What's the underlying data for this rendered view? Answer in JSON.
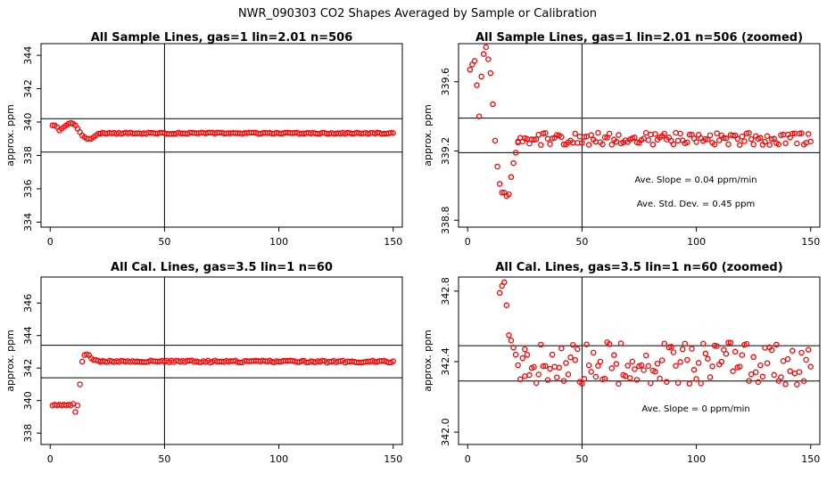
{
  "figure": {
    "title": "NWR_090303  CO2 Shapes Averaged by Sample or Calibration"
  },
  "chart_data": [
    {
      "type": "scatter",
      "title": "All Sample Lines, gas=1 lin=2.01 n=506",
      "xlabel": "",
      "ylabel": "approx. ppm",
      "xlim": [
        -4,
        154
      ],
      "ylim": [
        333.7,
        344.7
      ],
      "xticks": [
        "0",
        "50",
        "100",
        "150"
      ],
      "yticks": [
        "334",
        "336",
        "338",
        "340",
        "342",
        "344"
      ],
      "hlines": [
        340.2,
        338.2
      ],
      "vline": 50,
      "color": "#ff0000",
      "marker": "open-circle",
      "series": [
        {
          "segments": [
            {
              "x": [
                1,
                2,
                3,
                4,
                5,
                6,
                7,
                8,
                9,
                10,
                11,
                12,
                13,
                14,
                15,
                16,
                17,
                18,
                19,
                20,
                21,
                22
              ],
              "y": [
                339.8,
                339.8,
                339.7,
                339.5,
                339.6,
                339.7,
                339.8,
                339.9,
                339.95,
                339.9,
                339.8,
                339.6,
                339.4,
                339.2,
                339.1,
                339.0,
                339.0,
                339.0,
                339.1,
                339.2,
                339.3,
                339.3
              ]
            },
            {
              "from": 22,
              "to": 150,
              "base": 339.33,
              "amp": 0.04
            }
          ]
        }
      ]
    },
    {
      "type": "scatter",
      "title": "All Sample Lines, gas=1 lin=2.01 n=506 (zoomed)",
      "xlabel": "",
      "ylabel": "approx. ppm",
      "xlim": [
        -4,
        154
      ],
      "ylim": [
        338.76,
        339.82
      ],
      "xticks": [
        "0",
        "50",
        "100",
        "150"
      ],
      "yticks": [
        "338.8",
        "339.2",
        "339.6"
      ],
      "hlines": [
        339.39,
        339.19
      ],
      "vline": 50,
      "color": "#ff0000",
      "marker": "open-circle",
      "annotations": [
        "Ave. Slope =  0.04  ppm/min",
        "Ave. Std. Dev. =  0.45  ppm"
      ],
      "series": [
        {
          "segments": [
            {
              "x": [
                1,
                2,
                3,
                4,
                5,
                6,
                7,
                8,
                9,
                10,
                11,
                12,
                13,
                14,
                15,
                16,
                17,
                18,
                19,
                20,
                21,
                22
              ],
              "y": [
                339.67,
                339.7,
                339.72,
                339.58,
                339.4,
                339.63,
                339.76,
                339.8,
                339.73,
                339.65,
                339.47,
                339.26,
                339.11,
                339.01,
                338.96,
                338.96,
                338.94,
                338.95,
                339.05,
                339.13,
                339.19,
                339.25
              ]
            },
            {
              "from": 22,
              "to": 150,
              "base": 339.27,
              "amp": 0.035
            }
          ]
        }
      ]
    },
    {
      "type": "scatter",
      "title": "All Cal. Lines, gas=3.5 lin=1 n=60",
      "xlabel": "",
      "ylabel": "approx. ppm",
      "xlim": [
        -4,
        154
      ],
      "ylim": [
        337.3,
        347.6
      ],
      "xticks": [
        "0",
        "50",
        "100",
        "150"
      ],
      "yticks": [
        "338",
        "340",
        "342",
        "344",
        "346"
      ],
      "hlines": [
        343.4,
        341.4
      ],
      "vline": 50,
      "color": "#ff0000",
      "marker": "open-circle",
      "series": [
        {
          "segments": [
            {
              "x": [
                1,
                2,
                3,
                4,
                5,
                6,
                7,
                8,
                9,
                10,
                11,
                12,
                13,
                14,
                15,
                16,
                17,
                18,
                19,
                20,
                21,
                22
              ],
              "y": [
                339.7,
                339.75,
                339.7,
                339.75,
                339.7,
                339.75,
                339.7,
                339.75,
                339.7,
                339.8,
                339.3,
                339.7,
                341.0,
                342.4,
                342.8,
                342.85,
                342.8,
                342.6,
                342.5,
                342.5,
                342.45,
                342.4
              ]
            },
            {
              "from": 22,
              "to": 150,
              "base": 342.4,
              "amp": 0.07
            }
          ]
        }
      ]
    },
    {
      "type": "scatter",
      "title": "All Cal. Lines, gas=3.5 lin=1 n=60 (zoomed)",
      "xlabel": "",
      "ylabel": "approx. ppm",
      "xlim": [
        -4,
        154
      ],
      "ylim": [
        341.93,
        342.88
      ],
      "xticks": [
        "0",
        "50",
        "100",
        "150"
      ],
      "yticks": [
        "342.0",
        "342.4",
        "342.8"
      ],
      "hlines": [
        342.49,
        342.29
      ],
      "vline": 50,
      "color": "#ff0000",
      "marker": "open-circle",
      "annotations": [
        "Ave. Slope =  0  ppm/min"
      ],
      "series": [
        {
          "segments": [
            {
              "x": [
                14,
                15,
                16,
                17,
                18,
                19,
                20,
                21,
                22,
                23,
                24,
                25
              ],
              "y": [
                342.79,
                342.83,
                342.85,
                342.72,
                342.55,
                342.52,
                342.48,
                342.44,
                342.38,
                342.3,
                342.42,
                342.47
              ]
            },
            {
              "from": 25,
              "to": 150,
              "base": 342.39,
              "amp": 0.12
            }
          ]
        }
      ]
    }
  ]
}
